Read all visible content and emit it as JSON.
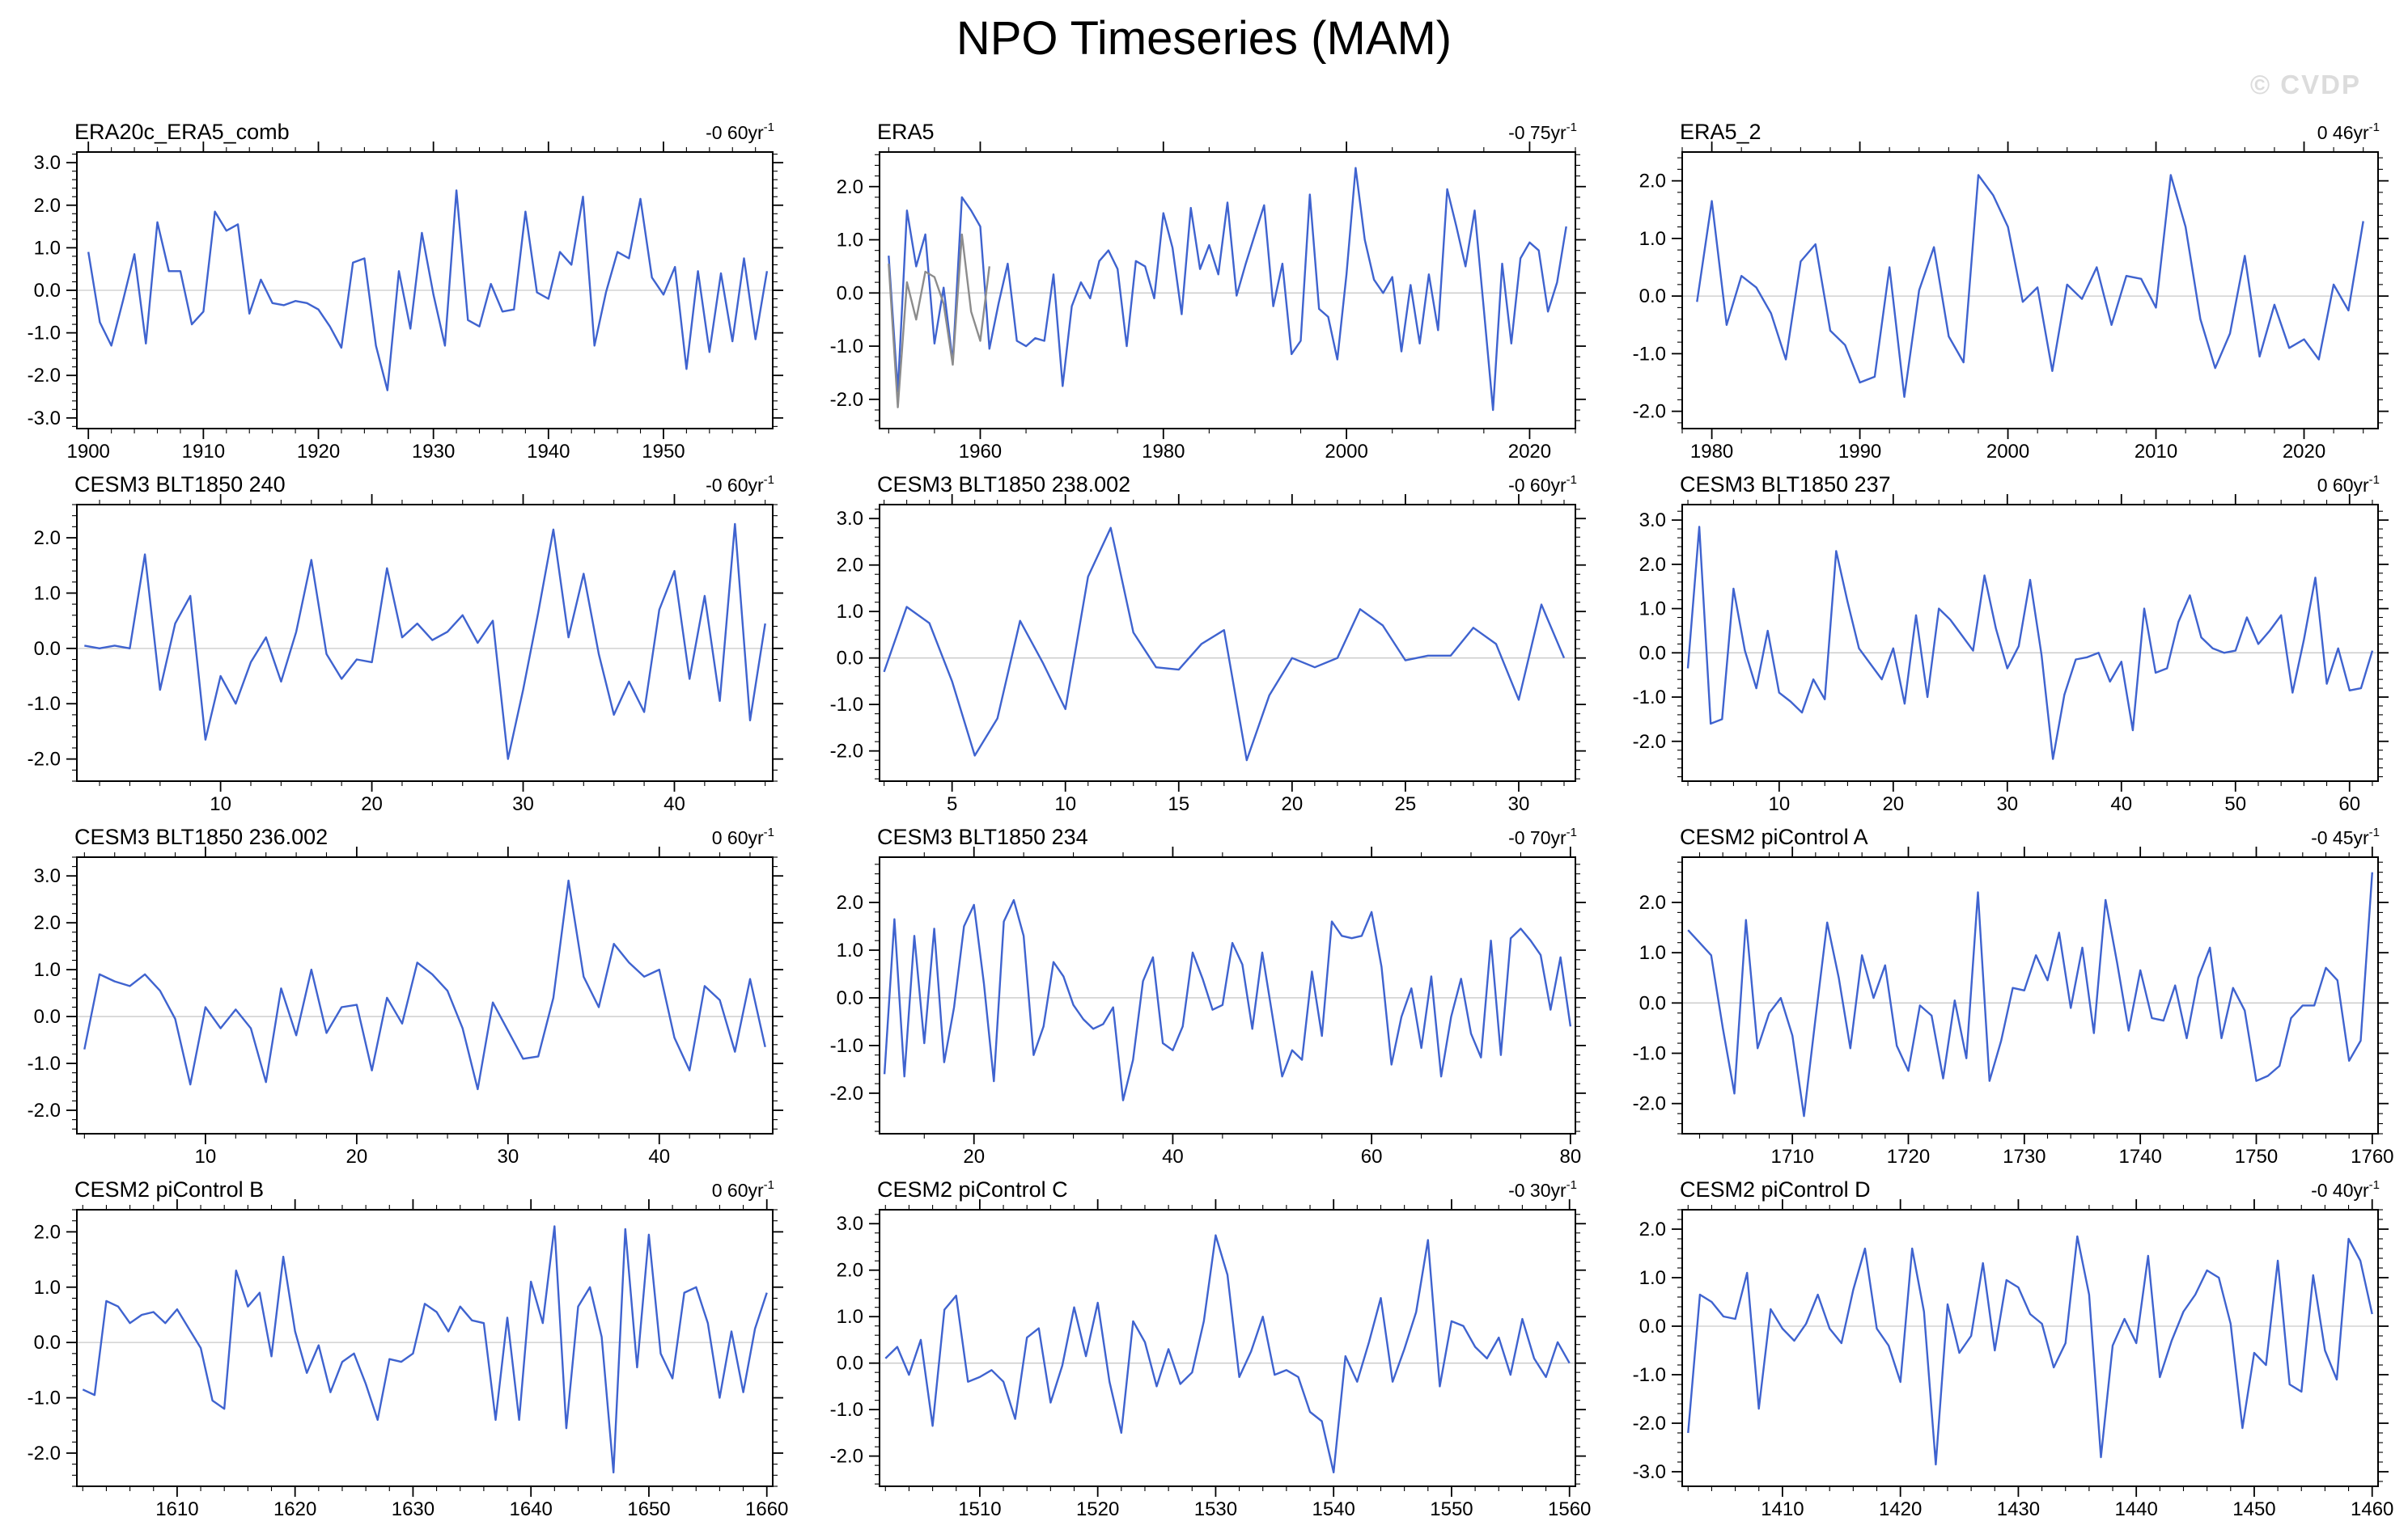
{
  "header": {
    "title": "NPO Timeseries (MAM)",
    "watermark": "© CVDP"
  },
  "accent_colors": {
    "series_blue": "#3f63cf",
    "series_gray": "#8c8c8c",
    "zero_line": "#c9c9c9",
    "frame": "#000000"
  },
  "chart_data": [
    {
      "type": "line",
      "title": "ERA20c_ERA5_comb",
      "trend_value": "-0 60",
      "trend_unit": "yr",
      "trend_exponent": "-1",
      "x_start": 1900,
      "x_step": 1,
      "values": [
        0.9,
        -0.75,
        -1.3,
        -0.25,
        0.85,
        -1.25,
        1.6,
        0.45,
        0.45,
        -0.8,
        -0.5,
        1.85,
        1.4,
        1.55,
        -0.55,
        0.25,
        -0.3,
        -0.35,
        -0.25,
        -0.3,
        -0.45,
        -0.85,
        -1.35,
        0.65,
        0.75,
        -1.3,
        -2.35,
        0.45,
        -0.9,
        1.35,
        -0.1,
        -1.3,
        2.35,
        -0.7,
        -0.85,
        0.15,
        -0.5,
        -0.45,
        1.85,
        -0.05,
        -0.2,
        0.9,
        0.6,
        2.2,
        -1.3,
        -0.05,
        0.9,
        0.75,
        2.15,
        0.3,
        -0.1,
        0.55,
        -1.85,
        0.45,
        -1.45,
        0.4,
        -1.2,
        0.75,
        -1.15,
        0.45
      ],
      "xlim": [
        1899,
        1959.5
      ],
      "ylim": [
        -3.25,
        3.25
      ],
      "xticks_labeled": [
        1900,
        1910,
        1920,
        1930,
        1940,
        1950
      ],
      "x_major_step": 10,
      "x_minor_step": 2,
      "yticks": [
        3.0,
        2.0,
        1.0,
        0.0,
        -1.0,
        -2.0,
        -3.0
      ],
      "y_minor_step": 0.2,
      "zero_line": true
    },
    {
      "type": "line",
      "title": "ERA5",
      "trend_value": "-0 75",
      "trend_unit": "yr",
      "trend_exponent": "-1",
      "x_start": 1950,
      "x_step": 1,
      "values": [
        0.7,
        -1.85,
        1.55,
        0.5,
        1.1,
        -0.95,
        0.1,
        -1.3,
        1.8,
        1.55,
        1.25,
        -1.05,
        -0.2,
        0.55,
        -0.9,
        -1.0,
        -0.85,
        -0.9,
        0.35,
        -1.75,
        -0.25,
        0.2,
        -0.1,
        0.6,
        0.8,
        0.45,
        -1.0,
        0.6,
        0.5,
        -0.1,
        1.5,
        0.85,
        -0.4,
        1.6,
        0.45,
        0.9,
        0.35,
        1.7,
        -0.05,
        0.55,
        1.1,
        1.65,
        -0.25,
        0.55,
        -1.15,
        -0.9,
        1.85,
        -0.3,
        -0.45,
        -1.25,
        0.35,
        2.35,
        1.0,
        0.25,
        0.0,
        0.3,
        -1.1,
        0.15,
        -0.95,
        0.35,
        -0.7,
        1.95,
        1.25,
        0.5,
        1.55,
        -0.3,
        -2.2,
        0.55,
        -0.95,
        0.65,
        0.95,
        0.8,
        -0.35,
        0.2,
        1.25
      ],
      "secondary_series": {
        "name": "secondary-gray",
        "x_start": 1950,
        "values": [
          0.55,
          -2.15,
          0.2,
          -0.5,
          0.4,
          0.3,
          -0.2,
          -1.35,
          1.1,
          -0.35,
          -0.9,
          0.5
        ]
      },
      "xlim": [
        1949,
        2025
      ],
      "ylim": [
        -2.55,
        2.65
      ],
      "xticks_labeled": [
        1960,
        1980,
        2000,
        2020
      ],
      "x_major_step": 20,
      "x_minor_step": 5,
      "yticks": [
        2.0,
        1.0,
        0.0,
        -1.0,
        -2.0
      ],
      "y_minor_step": 0.2,
      "zero_line": true
    },
    {
      "type": "line",
      "title": "ERA5_2",
      "trend_value": "0 46",
      "trend_unit": "yr",
      "trend_exponent": "-1",
      "x_start": 1979,
      "x_step": 1,
      "values": [
        -0.1,
        1.65,
        -0.5,
        0.35,
        0.15,
        -0.3,
        -1.1,
        0.6,
        0.9,
        -0.6,
        -0.85,
        -1.5,
        -1.4,
        0.5,
        -1.75,
        0.1,
        0.85,
        -0.7,
        -1.15,
        2.1,
        1.75,
        1.2,
        -0.1,
        0.15,
        -1.3,
        0.2,
        -0.05,
        0.5,
        -0.5,
        0.35,
        0.3,
        -0.2,
        2.1,
        1.2,
        -0.4,
        -1.25,
        -0.65,
        0.7,
        -1.05,
        -0.15,
        -0.9,
        -0.75,
        -1.1,
        0.2,
        -0.25,
        1.3
      ],
      "xlim": [
        1978,
        2025
      ],
      "ylim": [
        -2.3,
        2.5
      ],
      "xticks_labeled": [
        1980,
        1990,
        2000,
        2010,
        2020
      ],
      "x_major_step": 10,
      "x_minor_step": 2,
      "yticks": [
        2.0,
        1.0,
        0.0,
        -1.0,
        -2.0
      ],
      "y_minor_step": 0.2,
      "zero_line": true
    },
    {
      "type": "line",
      "title": "CESM3 BLT1850 240",
      "trend_value": "-0 60",
      "trend_unit": "yr",
      "trend_exponent": "-1",
      "x_start": 1,
      "x_step": 1,
      "values": [
        0.05,
        0.0,
        0.05,
        0.0,
        1.7,
        -0.75,
        0.45,
        0.95,
        -1.65,
        -0.5,
        -1.0,
        -0.25,
        0.2,
        -0.6,
        0.3,
        1.6,
        -0.1,
        -0.55,
        -0.2,
        -0.25,
        1.45,
        0.2,
        0.45,
        0.15,
        0.3,
        0.6,
        0.1,
        0.5,
        -2.0,
        -0.75,
        0.65,
        2.15,
        0.2,
        1.35,
        -0.1,
        -1.2,
        -0.6,
        -1.15,
        0.7,
        1.4,
        -0.55,
        0.95,
        -0.95,
        2.25,
        -1.3,
        0.45
      ],
      "xlim": [
        0.5,
        46.5
      ],
      "ylim": [
        -2.4,
        2.6
      ],
      "xticks_labeled": [
        10,
        20,
        30,
        40
      ],
      "x_major_step": 10,
      "x_minor_step": 2,
      "yticks": [
        2.0,
        1.0,
        0.0,
        -1.0,
        -2.0
      ],
      "y_minor_step": 0.2,
      "zero_line": true
    },
    {
      "type": "line",
      "title": "CESM3 BLT1850 238.002",
      "trend_value": "-0 60",
      "trend_unit": "yr",
      "trend_exponent": "-1",
      "x_start": 2,
      "x_step": 1,
      "values": [
        -0.3,
        1.1,
        0.75,
        -0.5,
        -2.1,
        -1.3,
        0.8,
        -0.1,
        -1.1,
        1.75,
        2.8,
        0.55,
        -0.2,
        -0.25,
        0.3,
        0.6,
        -2.2,
        -0.8,
        0.0,
        -0.2,
        0.0,
        1.05,
        0.7,
        -0.05,
        0.05,
        0.05,
        0.65,
        0.3,
        -0.9,
        1.15,
        0.0
      ],
      "xlim": [
        1.8,
        32.5
      ],
      "ylim": [
        -2.65,
        3.3
      ],
      "xticks_labeled": [
        5,
        10,
        15,
        20,
        25,
        30
      ],
      "x_major_step": 5,
      "x_minor_step": 1,
      "yticks": [
        3.0,
        2.0,
        1.0,
        0.0,
        -1.0,
        -2.0
      ],
      "y_minor_step": 0.2,
      "zero_line": true
    },
    {
      "type": "line",
      "title": "CESM3 BLT1850 237",
      "trend_value": "0 60",
      "trend_unit": "yr",
      "trend_exponent": "-1",
      "x_start": 2,
      "x_step": 1,
      "values": [
        -0.35,
        2.85,
        -1.6,
        -1.5,
        1.45,
        0.05,
        -0.8,
        0.5,
        -0.9,
        -1.1,
        -1.35,
        -0.6,
        -1.05,
        2.3,
        1.15,
        0.1,
        -0.25,
        -0.6,
        0.1,
        -1.15,
        0.85,
        -1.0,
        1.0,
        0.75,
        0.4,
        0.05,
        1.75,
        0.55,
        -0.35,
        0.15,
        1.65,
        -0.05,
        -2.4,
        -0.95,
        -0.15,
        -0.1,
        0.0,
        -0.65,
        -0.2,
        -1.75,
        1.0,
        -0.45,
        -0.35,
        0.7,
        1.3,
        0.35,
        0.1,
        0.0,
        0.05,
        0.8,
        0.2,
        0.5,
        0.85,
        -0.9,
        0.3,
        1.7,
        -0.7,
        0.1,
        -0.85,
        -0.8,
        0.05
      ],
      "xlim": [
        1.5,
        62.5
      ],
      "ylim": [
        -2.9,
        3.35
      ],
      "xticks_labeled": [
        10,
        20,
        30,
        40,
        50,
        60
      ],
      "x_major_step": 10,
      "x_minor_step": 2,
      "yticks": [
        3.0,
        2.0,
        1.0,
        0.0,
        -1.0,
        -2.0
      ],
      "y_minor_step": 0.2,
      "zero_line": true
    },
    {
      "type": "line",
      "title": "CESM3 BLT1850 236.002",
      "trend_value": "0 60",
      "trend_unit": "yr",
      "trend_exponent": "-1",
      "x_start": 2,
      "x_step": 1,
      "values": [
        -0.7,
        0.9,
        0.75,
        0.65,
        0.9,
        0.55,
        -0.05,
        -1.45,
        0.2,
        -0.25,
        0.15,
        -0.25,
        -1.4,
        0.6,
        -0.4,
        1.0,
        -0.35,
        0.2,
        0.25,
        -1.15,
        0.4,
        -0.15,
        1.15,
        0.9,
        0.55,
        -0.25,
        -1.55,
        0.3,
        -0.3,
        -0.9,
        -0.85,
        0.4,
        2.9,
        0.85,
        0.2,
        1.55,
        1.15,
        0.85,
        1.0,
        -0.45,
        -1.15,
        0.65,
        0.35,
        -0.75,
        0.8,
        -0.65
      ],
      "xlim": [
        1.5,
        47.5
      ],
      "ylim": [
        -2.5,
        3.4
      ],
      "xticks_labeled": [
        10,
        20,
        30,
        40
      ],
      "x_major_step": 10,
      "x_minor_step": 2,
      "yticks": [
        3.0,
        2.0,
        1.0,
        0.0,
        -1.0,
        -2.0
      ],
      "y_minor_step": 0.2,
      "zero_line": true
    },
    {
      "type": "line",
      "title": "CESM3 BLT1850 234",
      "trend_value": "-0 70",
      "trend_unit": "yr",
      "trend_exponent": "-1",
      "x_start": 11,
      "x_step": 1,
      "values": [
        -1.6,
        1.65,
        -1.65,
        1.3,
        -0.95,
        1.45,
        -1.35,
        -0.2,
        1.5,
        1.95,
        0.3,
        -1.75,
        1.6,
        2.05,
        1.3,
        -1.2,
        -0.6,
        0.75,
        0.45,
        -0.15,
        -0.45,
        -0.65,
        -0.55,
        -0.2,
        -2.15,
        -1.3,
        0.35,
        0.85,
        -0.95,
        -1.1,
        -0.6,
        0.95,
        0.4,
        -0.25,
        -0.15,
        1.15,
        0.7,
        -0.65,
        0.95,
        -0.35,
        -1.65,
        -1.1,
        -1.3,
        0.55,
        -0.8,
        1.6,
        1.3,
        1.25,
        1.3,
        1.8,
        0.65,
        -1.4,
        -0.4,
        0.2,
        -1.05,
        0.45,
        -1.65,
        -0.4,
        0.4,
        -0.75,
        -1.25,
        1.2,
        -1.2,
        1.25,
        1.45,
        1.2,
        0.9,
        -0.25,
        0.85,
        -0.6
      ],
      "xlim": [
        10.5,
        80.5
      ],
      "ylim": [
        -2.85,
        2.95
      ],
      "xticks_labeled": [
        20,
        40,
        60,
        80
      ],
      "x_major_step": 20,
      "x_minor_step": 5,
      "yticks": [
        2.0,
        1.0,
        0.0,
        -1.0,
        -2.0
      ],
      "y_minor_step": 0.2,
      "zero_line": true
    },
    {
      "type": "line",
      "title": "CESM2 piControl A",
      "trend_value": "-0 45",
      "trend_unit": "yr",
      "trend_exponent": "-1",
      "x_start": 1701,
      "x_step": 1,
      "values": [
        1.45,
        1.2,
        0.95,
        -0.5,
        -1.8,
        1.65,
        -0.9,
        -0.2,
        0.1,
        -0.65,
        -2.25,
        -0.3,
        1.6,
        0.5,
        -0.9,
        0.95,
        0.1,
        0.75,
        -0.85,
        -1.35,
        -0.05,
        -0.25,
        -1.5,
        0.05,
        -1.1,
        2.2,
        -1.55,
        -0.75,
        0.3,
        0.25,
        0.95,
        0.45,
        1.4,
        -0.1,
        1.1,
        -0.6,
        2.05,
        0.8,
        -0.55,
        0.65,
        -0.3,
        -0.35,
        0.35,
        -0.7,
        0.5,
        1.1,
        -0.7,
        0.3,
        -0.15,
        -1.55,
        -1.45,
        -1.25,
        -0.3,
        -0.05,
        -0.05,
        0.7,
        0.45,
        -1.15,
        -0.75,
        2.6
      ],
      "xlim": [
        1700.5,
        1760.5
      ],
      "ylim": [
        -2.6,
        2.9
      ],
      "xticks_labeled": [
        1710,
        1720,
        1730,
        1740,
        1750,
        1760
      ],
      "x_major_step": 10,
      "x_minor_step": 2,
      "yticks": [
        2.0,
        1.0,
        0.0,
        -1.0,
        -2.0
      ],
      "y_minor_step": 0.2,
      "zero_line": true
    },
    {
      "type": "line",
      "title": "CESM2 piControl B",
      "trend_value": "0 60",
      "trend_unit": "yr",
      "trend_exponent": "-1",
      "x_start": 1602,
      "x_step": 1,
      "values": [
        -0.85,
        -0.95,
        0.75,
        0.65,
        0.35,
        0.5,
        0.55,
        0.35,
        0.6,
        0.25,
        -0.1,
        -1.05,
        -1.2,
        1.3,
        0.65,
        0.9,
        -0.25,
        1.55,
        0.2,
        -0.55,
        -0.05,
        -0.9,
        -0.35,
        -0.2,
        -0.75,
        -1.4,
        -0.3,
        -0.35,
        -0.2,
        0.7,
        0.55,
        0.2,
        0.65,
        0.4,
        0.35,
        -1.4,
        0.45,
        -1.4,
        1.1,
        0.35,
        2.1,
        -1.55,
        0.65,
        1.0,
        0.1,
        -2.35,
        2.05,
        -0.45,
        1.95,
        -0.2,
        -0.65,
        0.9,
        1.0,
        0.35,
        -1.0,
        0.2,
        -0.9,
        0.25,
        0.9
      ],
      "xlim": [
        1601.5,
        1660.5
      ],
      "ylim": [
        -2.6,
        2.4
      ],
      "xticks_labeled": [
        1610,
        1620,
        1630,
        1640,
        1650,
        1660
      ],
      "x_major_step": 10,
      "x_minor_step": 2,
      "yticks": [
        2.0,
        1.0,
        0.0,
        -1.0,
        -2.0
      ],
      "y_minor_step": 0.2,
      "zero_line": true
    },
    {
      "type": "line",
      "title": "CESM2 piControl C",
      "trend_value": "-0 30",
      "trend_unit": "yr",
      "trend_exponent": "-1",
      "x_start": 1502,
      "x_step": 1,
      "values": [
        0.1,
        0.35,
        -0.25,
        0.5,
        -1.35,
        1.15,
        1.45,
        -0.4,
        -0.3,
        -0.15,
        -0.4,
        -1.2,
        0.55,
        0.75,
        -0.85,
        -0.05,
        1.2,
        0.15,
        1.3,
        -0.4,
        -1.5,
        0.9,
        0.45,
        -0.5,
        0.3,
        -0.45,
        -0.2,
        0.9,
        2.75,
        1.9,
        -0.3,
        0.25,
        1.0,
        -0.25,
        -0.15,
        -0.3,
        -1.05,
        -1.25,
        -2.35,
        0.15,
        -0.4,
        0.45,
        1.4,
        -0.4,
        0.3,
        1.1,
        2.65,
        -0.5,
        0.9,
        0.8,
        0.35,
        0.1,
        0.55,
        -0.25,
        0.95,
        0.1,
        -0.3,
        0.45,
        0.0
      ],
      "xlim": [
        1501.5,
        1560.5
      ],
      "ylim": [
        -2.65,
        3.3
      ],
      "xticks_labeled": [
        1510,
        1520,
        1530,
        1540,
        1550,
        1560
      ],
      "x_major_step": 10,
      "x_minor_step": 2,
      "yticks": [
        3.0,
        2.0,
        1.0,
        0.0,
        -1.0,
        -2.0
      ],
      "y_minor_step": 0.2,
      "zero_line": true
    },
    {
      "type": "line",
      "title": "CESM2 piControl D",
      "trend_value": "-0 40",
      "trend_unit": "yr",
      "trend_exponent": "-1",
      "x_start": 1402,
      "x_step": 1,
      "values": [
        -2.2,
        0.65,
        0.5,
        0.2,
        0.15,
        1.1,
        -1.7,
        0.35,
        -0.05,
        -0.3,
        0.05,
        0.65,
        -0.05,
        -0.35,
        0.75,
        1.6,
        -0.05,
        -0.4,
        -1.15,
        1.6,
        0.3,
        -2.85,
        0.45,
        -0.55,
        -0.2,
        1.3,
        -0.5,
        0.95,
        0.8,
        0.25,
        0.05,
        -0.85,
        -0.35,
        1.85,
        0.65,
        -2.7,
        -0.4,
        0.15,
        -0.35,
        1.45,
        -1.05,
        -0.3,
        0.3,
        0.65,
        1.15,
        1.0,
        0.05,
        -2.1,
        -0.55,
        -0.8,
        1.35,
        -1.2,
        -1.35,
        1.05,
        -0.5,
        -1.1,
        1.8,
        1.35,
        0.25
      ],
      "xlim": [
        1401.5,
        1460.5
      ],
      "ylim": [
        -3.3,
        2.4
      ],
      "xticks_labeled": [
        1410,
        1420,
        1430,
        1440,
        1450,
        1460
      ],
      "x_major_step": 10,
      "x_minor_step": 2,
      "yticks": [
        2.0,
        1.0,
        0.0,
        -1.0,
        -2.0,
        -3.0
      ],
      "y_minor_step": 0.2,
      "zero_line": true
    }
  ]
}
